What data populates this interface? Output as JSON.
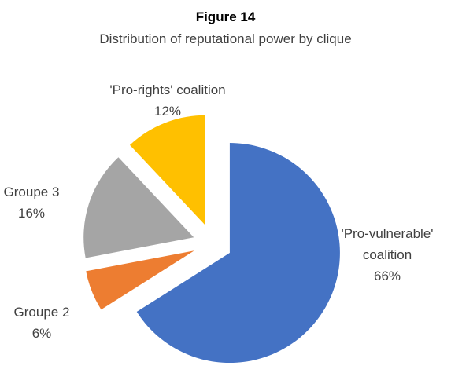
{
  "chart_data": {
    "type": "pie",
    "title": "Figure 14",
    "subtitle": "Distribution of reputational power by clique",
    "categories": [
      "'Pro-vulnerable' coalition",
      "Groupe 2",
      "Groupe 3",
      "'Pro-rights' coalition"
    ],
    "values": [
      66,
      6,
      16,
      12
    ],
    "value_labels": [
      "66%",
      "6%",
      "16%",
      "12%"
    ],
    "colors": [
      "#4472c4",
      "#ed7d31",
      "#a5a5a5",
      "#ffc000"
    ]
  }
}
